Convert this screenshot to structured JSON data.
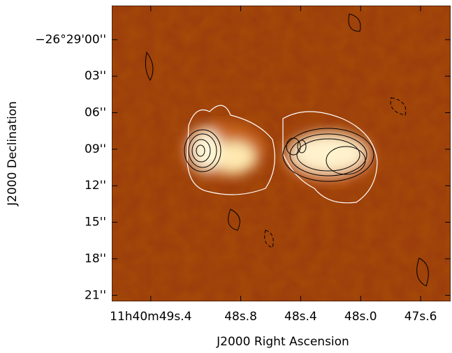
{
  "chart_data": {
    "type": "image",
    "xlabel": "J2000 Right Ascension",
    "ylabel": "J2000 Declination",
    "xlim": [
      49.66,
      47.4
    ],
    "ylim": [
      -2.8,
      21.5
    ],
    "xticks": [
      {
        "value": 49.4,
        "label": "11h40m49s.4"
      },
      {
        "value": 48.8,
        "label": "48s.8"
      },
      {
        "value": 48.4,
        "label": "48s.4"
      },
      {
        "value": 48.0,
        "label": "48s.0"
      },
      {
        "value": 47.6,
        "label": "47s.6"
      }
    ],
    "yticks": [
      {
        "value": 0,
        "label": "−26°29'00''"
      },
      {
        "value": 3,
        "label": "03''"
      },
      {
        "value": 6,
        "label": "06''"
      },
      {
        "value": 9,
        "label": "09''"
      },
      {
        "value": 12,
        "label": "12''"
      },
      {
        "value": 15,
        "label": "15''"
      },
      {
        "value": 18,
        "label": "18''"
      },
      {
        "value": 21,
        "label": "21''"
      }
    ]
  }
}
